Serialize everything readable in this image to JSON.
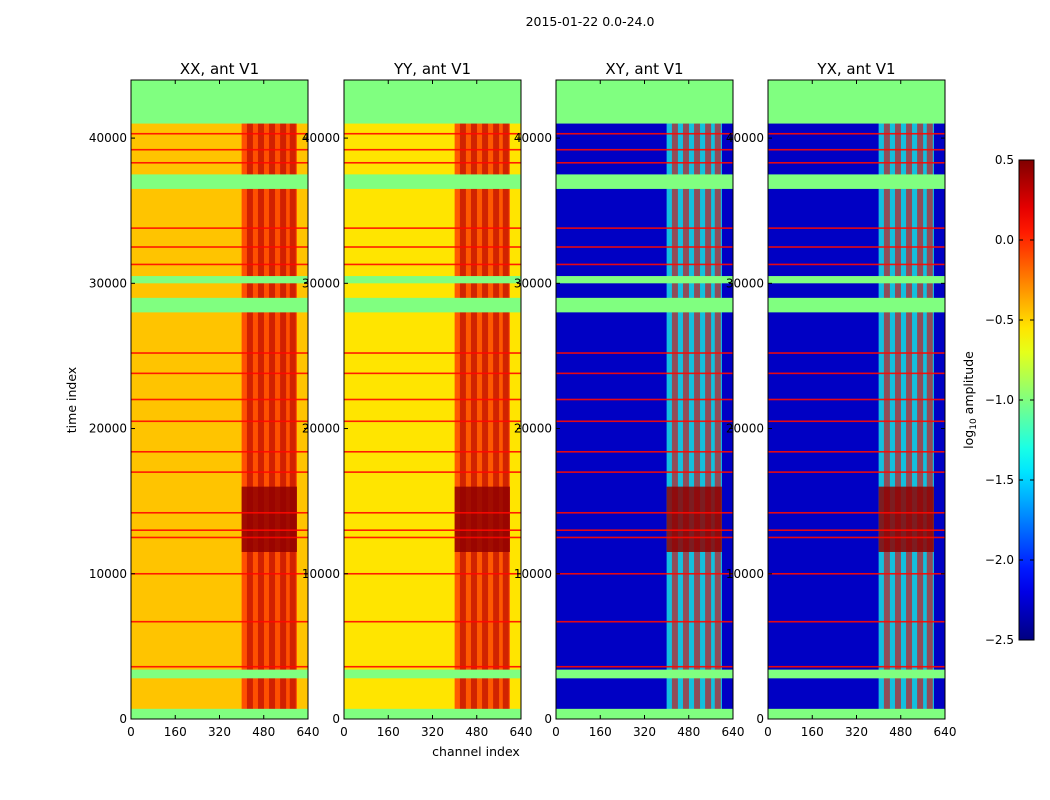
{
  "chart_data": {
    "type": "heatmap",
    "suptitle": "2015-01-22 0.0-24.0",
    "xlabel": "channel index",
    "ylabel": "time index",
    "xlim": [
      0,
      640
    ],
    "ylim": [
      0,
      44000
    ],
    "xticks": [
      0,
      160,
      320,
      480,
      640
    ],
    "yticks": [
      0,
      10000,
      20000,
      30000,
      40000
    ],
    "panels": [
      {
        "title": "XX, ant V1",
        "level": -0.45,
        "burst_level": 0.45
      },
      {
        "title": "YY, ant V1",
        "level": -0.55,
        "burst_level": 0.45
      },
      {
        "title": "XY, ant V1",
        "level": -2.3,
        "burst_level": 0.45
      },
      {
        "title": "YX, ant V1",
        "level": -2.3,
        "burst_level": 0.45
      }
    ],
    "flagged_time_ranges": [
      [
        0,
        700
      ],
      [
        2800,
        3400
      ],
      [
        28000,
        29000
      ],
      [
        30000,
        30500
      ],
      [
        36500,
        37500
      ],
      [
        41000,
        44000
      ]
    ],
    "bright_channel_range": [
      400,
      600
    ],
    "burst_time_range": [
      11500,
      16000
    ],
    "colorbar": {
      "label": "log10 amplitude",
      "label_main": "log",
      "label_sub": "10",
      "label_tail": " amplitude",
      "min": -2.5,
      "max": 0.5,
      "ticks": [
        -2.5,
        -2.0,
        -1.5,
        -1.0,
        -0.5,
        0.0,
        0.5
      ],
      "tick_labels": [
        "−2.5",
        "−2.0",
        "−1.5",
        "−1.0",
        "−0.5",
        "0.0",
        "0.5"
      ],
      "colormap": "jet"
    }
  }
}
